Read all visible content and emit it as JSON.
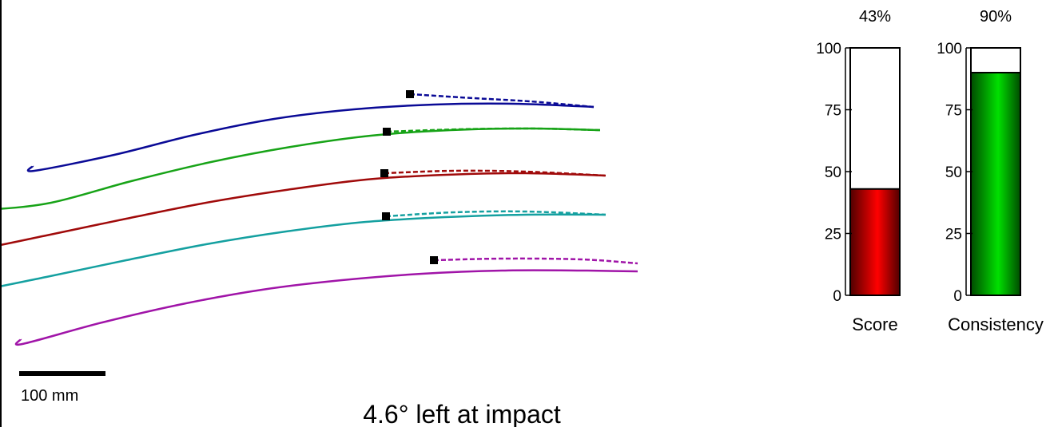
{
  "caption": "4.6° left at impact",
  "scale_bar": {
    "label": "100 mm",
    "length_mm": 100
  },
  "colors": {
    "trace_1": "#0a0a96",
    "trace_2": "#17a317",
    "trace_3": "#a00a0a",
    "trace_4": "#14a0a0",
    "trace_5": "#a014a8",
    "score_fill": "#ff0000",
    "consistency_fill": "#00d800"
  },
  "chart_data": [
    {
      "type": "line",
      "description_key": "stroke-traces",
      "units": "mm",
      "series": [
        {
          "solid": [
            [
              0,
              0
            ],
            [
              100,
              -20
            ],
            [
              200,
              -45
            ],
            [
              300,
              -65
            ],
            [
              400,
              -77
            ],
            [
              500,
              -83
            ],
            [
              600,
              -84
            ],
            [
              700,
              -80
            ]
          ],
          "dashed": [
            [
              470,
              -96
            ],
            [
              550,
              -91
            ],
            [
              620,
              -87
            ],
            [
              700,
              -80
            ]
          ]
        },
        {
          "solid": [
            [
              -25,
              0
            ],
            [
              50,
              -8
            ],
            [
              150,
              -35
            ],
            [
              250,
              -59
            ],
            [
              350,
              -78
            ],
            [
              450,
              -92
            ],
            [
              550,
              -99
            ],
            [
              650,
              -101
            ],
            [
              737,
              -99
            ]
          ],
          "dashed": [
            [
              470,
              -97
            ],
            [
              560,
              -100
            ],
            [
              650,
              -101
            ],
            [
              737,
              -99
            ]
          ]
        },
        {
          "solid": [
            [
              -35,
              0
            ],
            [
              50,
              -17
            ],
            [
              150,
              -38
            ],
            [
              250,
              -58
            ],
            [
              350,
              -74
            ],
            [
              450,
              -87
            ],
            [
              550,
              -93
            ],
            [
              650,
              -95
            ],
            [
              750,
              -92
            ]
          ],
          "dashed": [
            [
              473,
              -95
            ],
            [
              560,
              -98
            ],
            [
              650,
              -97
            ],
            [
              750,
              -92
            ]
          ]
        },
        {
          "solid": [
            [
              -37,
              0
            ],
            [
              50,
              -17
            ],
            [
              150,
              -38
            ],
            [
              250,
              -58
            ],
            [
              350,
              -74
            ],
            [
              450,
              -86
            ],
            [
              550,
              -92
            ],
            [
              650,
              -95
            ],
            [
              750,
              -95
            ]
          ],
          "dashed": [
            [
              475,
              -93
            ],
            [
              560,
              -98
            ],
            [
              650,
              -99
            ],
            [
              750,
              -95
            ]
          ]
        },
        {
          "solid": [
            [
              0,
              0
            ],
            [
              100,
              -27
            ],
            [
              200,
              -50
            ],
            [
              300,
              -68
            ],
            [
              400,
              -80
            ],
            [
              500,
              -88
            ],
            [
              600,
              -92
            ],
            [
              700,
              -92
            ],
            [
              770,
              -91
            ]
          ],
          "dashed": [
            [
              515,
              -105
            ],
            [
              600,
              -107
            ],
            [
              700,
              -106
            ],
            [
              770,
              -101
            ]
          ]
        }
      ]
    },
    {
      "type": "bar",
      "title": "43%",
      "categories": [
        "Score"
      ],
      "values": [
        43
      ],
      "ylim": [
        0,
        100
      ],
      "yticks": [
        "0",
        "25",
        "50",
        "75",
        "100"
      ]
    },
    {
      "type": "bar",
      "title": "90%",
      "categories": [
        "Consistency"
      ],
      "values": [
        90
      ],
      "ylim": [
        0,
        100
      ],
      "yticks": [
        "0",
        "25",
        "50",
        "75",
        "100"
      ]
    }
  ]
}
